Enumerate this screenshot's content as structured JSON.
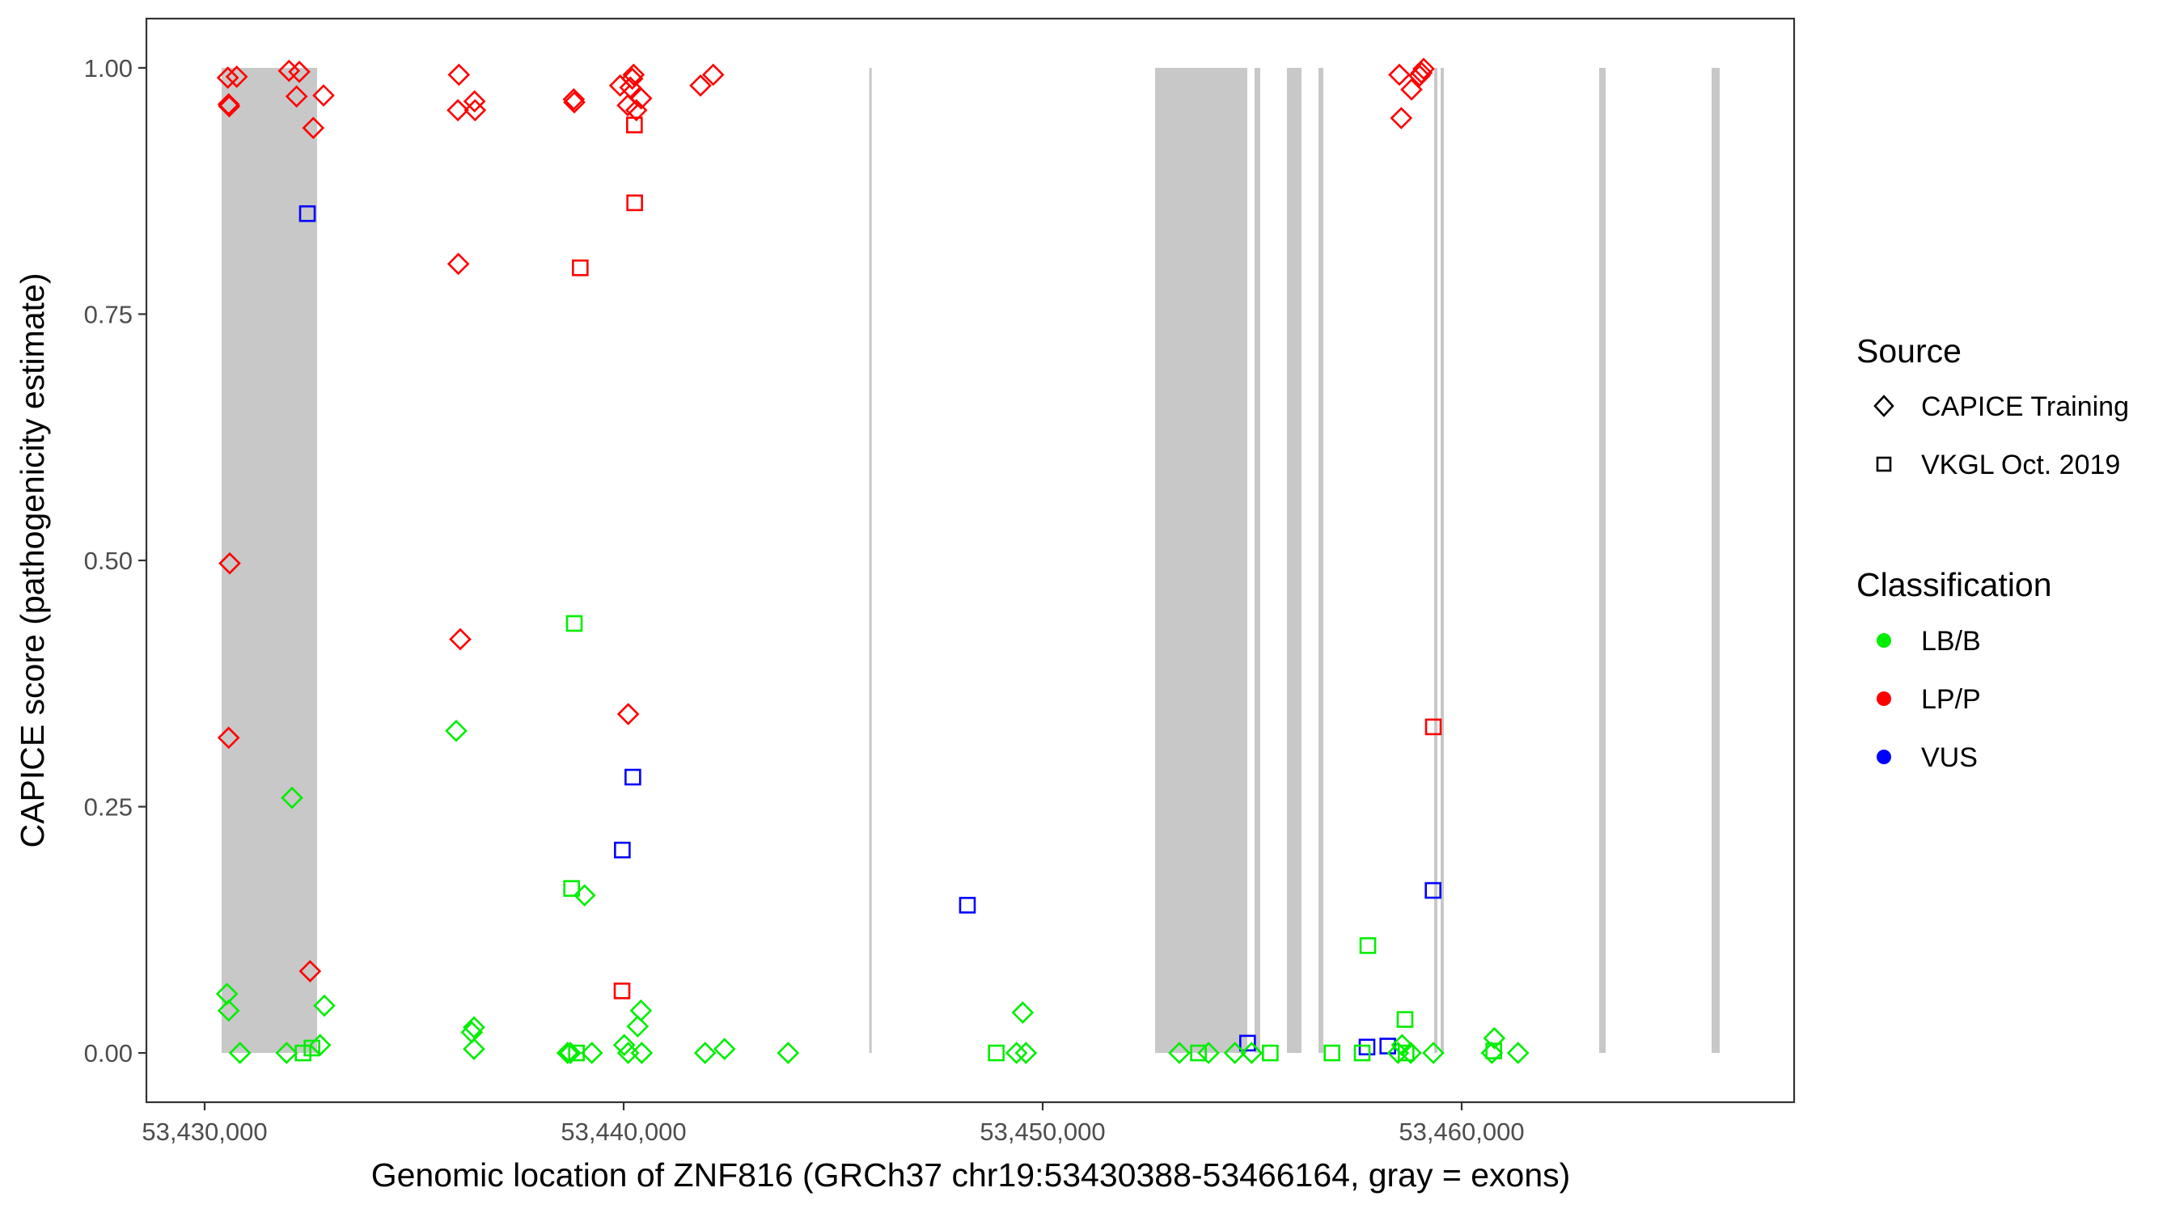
{
  "chart_data": {
    "type": "scatter",
    "title": "",
    "xlabel": "Genomic location of ZNF816 (GRCh37 chr19:53430388-53466164, gray = exons)",
    "ylabel": "CAPICE score (pathogenicity estimate)",
    "xlim": [
      53428610,
      53467934
    ],
    "ylim": [
      -0.05,
      1.05
    ],
    "xticks": [
      53430000,
      53440000,
      53450000,
      53460000
    ],
    "xtick_labels": [
      "53,430,000",
      "53,440,000",
      "53,450,000",
      "53,460,000"
    ],
    "yticks": [
      0,
      0.25,
      0.5,
      0.75,
      1.0
    ],
    "ytick_labels": [
      "0.00",
      "0.25",
      "0.50",
      "0.75",
      "1.00"
    ],
    "grid": false,
    "legend_position": "right",
    "exon_color": "#c8c8c8",
    "exons": [
      [
        53430405,
        53432683
      ],
      [
        53445860,
        53445920
      ],
      [
        53452683,
        53454884
      ],
      [
        53455058,
        53455193
      ],
      [
        53455830,
        53456177
      ],
      [
        53456583,
        53456699
      ],
      [
        53459344,
        53459421
      ],
      [
        53459498,
        53459575
      ],
      [
        53463281,
        53463436
      ],
      [
        53465965,
        53466158
      ]
    ],
    "legend": {
      "source_title": "Source",
      "sources": [
        {
          "label": "CAPICE Training",
          "shape": "diamond"
        },
        {
          "label": "VKGL Oct. 2019",
          "shape": "square"
        }
      ],
      "classification_title": "Classification",
      "classes": [
        {
          "label": "LB/B",
          "color": "#00ee00"
        },
        {
          "label": "LP/P",
          "color": "#ff0000"
        },
        {
          "label": "VUS",
          "color": "#0000ff"
        }
      ]
    },
    "points_format": [
      "position",
      "score",
      "source_index",
      "class_index"
    ],
    "points": [
      [
        53430553,
        0.99,
        0,
        1
      ],
      [
        53430766,
        0.991,
        0,
        1
      ],
      [
        53430573,
        0.963,
        0,
        1
      ],
      [
        53430586,
        0.961,
        0,
        1
      ],
      [
        53432014,
        0.997,
        0,
        1
      ],
      [
        53432259,
        0.996,
        0,
        1
      ],
      [
        53432194,
        0.971,
        0,
        1
      ],
      [
        53432838,
        0.972,
        0,
        1
      ],
      [
        53432593,
        0.939,
        0,
        1
      ],
      [
        53430598,
        0.497,
        0,
        1
      ],
      [
        53430573,
        0.32,
        0,
        1
      ],
      [
        53432516,
        0.083,
        0,
        1
      ],
      [
        53436068,
        0.993,
        0,
        1
      ],
      [
        53436043,
        0.957,
        0,
        1
      ],
      [
        53436441,
        0.966,
        0,
        1
      ],
      [
        53436454,
        0.957,
        0,
        1
      ],
      [
        53436055,
        0.801,
        0,
        1
      ],
      [
        53436100,
        0.42,
        0,
        1
      ],
      [
        53438810,
        0.968,
        0,
        1
      ],
      [
        53438822,
        0.965,
        0,
        1
      ],
      [
        53439916,
        0.982,
        0,
        1
      ],
      [
        53440238,
        0.993,
        0,
        1
      ],
      [
        53440206,
        0.989,
        0,
        1
      ],
      [
        53440161,
        0.98,
        0,
        1
      ],
      [
        53440418,
        0.969,
        0,
        1
      ],
      [
        53440097,
        0.962,
        0,
        1
      ],
      [
        53440303,
        0.957,
        0,
        1
      ],
      [
        53441834,
        0.982,
        0,
        1
      ],
      [
        53442137,
        0.993,
        0,
        1
      ],
      [
        53440109,
        0.344,
        0,
        1
      ],
      [
        53458513,
        0.993,
        0,
        1
      ],
      [
        53458803,
        0.978,
        0,
        1
      ],
      [
        53458996,
        0.992,
        0,
        1
      ],
      [
        53459093,
        0.999,
        0,
        1
      ],
      [
        53459041,
        0.995,
        0,
        1
      ],
      [
        53458558,
        0.949,
        0,
        1
      ],
      [
        53440257,
        0.942,
        1,
        1
      ],
      [
        53440263,
        0.863,
        1,
        1
      ],
      [
        53438964,
        0.797,
        1,
        1
      ],
      [
        53439961,
        0.063,
        1,
        1
      ],
      [
        53459324,
        0.331,
        1,
        1
      ],
      [
        53432452,
        0.852,
        1,
        2
      ],
      [
        53440219,
        0.28,
        1,
        2
      ],
      [
        53439968,
        0.206,
        1,
        2
      ],
      [
        53448204,
        0.15,
        1,
        2
      ],
      [
        53454890,
        0.01,
        1,
        2
      ],
      [
        53457741,
        0.006,
        1,
        2
      ],
      [
        53458237,
        0.007,
        1,
        2
      ],
      [
        53459318,
        0.165,
        1,
        2
      ],
      [
        53432349,
        0.0,
        1,
        0
      ],
      [
        53432561,
        0.005,
        1,
        0
      ],
      [
        53438822,
        0.436,
        1,
        0
      ],
      [
        53438758,
        0.167,
        1,
        0
      ],
      [
        53438874,
        0.0,
        1,
        0
      ],
      [
        53448893,
        0.0,
        1,
        0
      ],
      [
        53453719,
        0.0,
        1,
        0
      ],
      [
        53455431,
        0.0,
        1,
        0
      ],
      [
        53456905,
        0.0,
        1,
        0
      ],
      [
        53457625,
        0.0,
        1,
        0
      ],
      [
        53457761,
        0.109,
        1,
        0
      ],
      [
        53458648,
        0.034,
        1,
        0
      ],
      [
        53458674,
        0.0,
        1,
        0
      ],
      [
        53460766,
        0.002,
        1,
        0
      ],
      [
        53432085,
        0.259,
        0,
        0
      ],
      [
        53430534,
        0.06,
        0,
        0
      ],
      [
        53430573,
        0.043,
        0,
        0
      ],
      [
        53432857,
        0.048,
        0,
        0
      ],
      [
        53430843,
        0.0,
        0,
        0
      ],
      [
        53431956,
        0.0,
        0,
        0
      ],
      [
        53432754,
        0.008,
        0,
        0
      ],
      [
        53436004,
        0.327,
        0,
        0
      ],
      [
        53436428,
        0.026,
        0,
        0
      ],
      [
        53436377,
        0.021,
        0,
        0
      ],
      [
        53436428,
        0.004,
        0,
        0
      ],
      [
        53438662,
        0.0,
        0,
        0
      ],
      [
        53438726,
        0.0,
        0,
        0
      ],
      [
        53439241,
        0.0,
        0,
        0
      ],
      [
        53439067,
        0.16,
        0,
        0
      ],
      [
        53440412,
        0.043,
        0,
        0
      ],
      [
        53440335,
        0.027,
        0,
        0
      ],
      [
        53440013,
        0.008,
        0,
        0
      ],
      [
        53440109,
        0.0,
        0,
        0
      ],
      [
        53440431,
        0.0,
        0,
        0
      ],
      [
        53441944,
        0.0,
        0,
        0
      ],
      [
        53442407,
        0.004,
        0,
        0
      ],
      [
        53443925,
        0.0,
        0,
        0
      ],
      [
        53449524,
        0.041,
        0,
        0
      ],
      [
        53449376,
        0.0,
        0,
        0
      ],
      [
        53449601,
        0.0,
        0,
        0
      ],
      [
        53453263,
        0.0,
        0,
        0
      ],
      [
        53453958,
        0.0,
        0,
        0
      ],
      [
        53454588,
        0.0,
        0,
        0
      ],
      [
        53454987,
        0.0,
        0,
        0
      ],
      [
        53458481,
        0.0,
        0,
        0
      ],
      [
        53458578,
        0.008,
        0,
        0
      ],
      [
        53458784,
        0.0,
        0,
        0
      ],
      [
        53459324,
        0.0,
        0,
        0
      ],
      [
        53460779,
        0.015,
        0,
        0
      ],
      [
        53460721,
        0.0,
        0,
        0
      ],
      [
        53461345,
        0.0,
        0,
        0
      ]
    ]
  }
}
